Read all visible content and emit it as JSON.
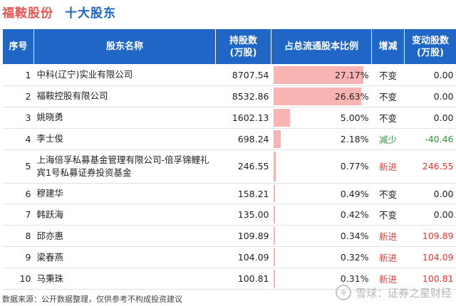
{
  "header": {
    "company": "福鞍股份",
    "subtitle": "十大股东"
  },
  "table": {
    "columns": [
      "序号",
      "股东名称",
      "持股数\n(万股)",
      "占总流通股本比例",
      "增减",
      "变动股数\n(万股)"
    ],
    "rows": [
      {
        "rank": "1",
        "name": "中科(辽宁)实业有限公司",
        "shares": "8707.54",
        "pct": "27.17%",
        "pct_value": 27.17,
        "change": "不变",
        "change_type": "neutral",
        "delta": "0.00"
      },
      {
        "rank": "2",
        "name": "福鞍控股有限公司",
        "shares": "8532.86",
        "pct": "26.63%",
        "pct_value": 26.63,
        "change": "不变",
        "change_type": "neutral",
        "delta": "0.00"
      },
      {
        "rank": "3",
        "name": "姚晓勇",
        "shares": "1602.13",
        "pct": "5.00%",
        "pct_value": 5.0,
        "change": "不变",
        "change_type": "neutral",
        "delta": "0.00"
      },
      {
        "rank": "4",
        "name": "李士俊",
        "shares": "698.24",
        "pct": "2.18%",
        "pct_value": 2.18,
        "change": "减少",
        "change_type": "neg",
        "delta": "-40.46"
      },
      {
        "rank": "5",
        "name": "上海倍孚私募基金管理有限公司-倍孚锦鲤礼宾1号私募证券投资基金",
        "shares": "246.55",
        "pct": "0.77%",
        "pct_value": 0.77,
        "change": "新进",
        "change_type": "pos",
        "delta": "246.55"
      },
      {
        "rank": "6",
        "name": "穆建华",
        "shares": "158.21",
        "pct": "0.49%",
        "pct_value": 0.49,
        "change": "不变",
        "change_type": "neutral",
        "delta": "0.00"
      },
      {
        "rank": "7",
        "name": "韩跃海",
        "shares": "135.00",
        "pct": "0.42%",
        "pct_value": 0.42,
        "change": "不变",
        "change_type": "neutral",
        "delta": "0.00"
      },
      {
        "rank": "8",
        "name": "邱亦惠",
        "shares": "109.89",
        "pct": "0.34%",
        "pct_value": 0.34,
        "change": "新进",
        "change_type": "pos",
        "delta": "109.89"
      },
      {
        "rank": "9",
        "name": "梁春燕",
        "shares": "104.09",
        "pct": "0.32%",
        "pct_value": 0.32,
        "change": "新进",
        "change_type": "pos",
        "delta": "104.09"
      },
      {
        "rank": "10",
        "name": "马秉珠",
        "shares": "100.81",
        "pct": "0.31%",
        "pct_value": 0.31,
        "change": "新进",
        "change_type": "pos",
        "delta": "100.81"
      }
    ]
  },
  "footer": {
    "source": "数据来源：公开数据整理，仅供参考不构成投资建议"
  },
  "brand": {
    "text": "雪球：证券之星财经",
    "icon": "snowball-icon"
  }
}
